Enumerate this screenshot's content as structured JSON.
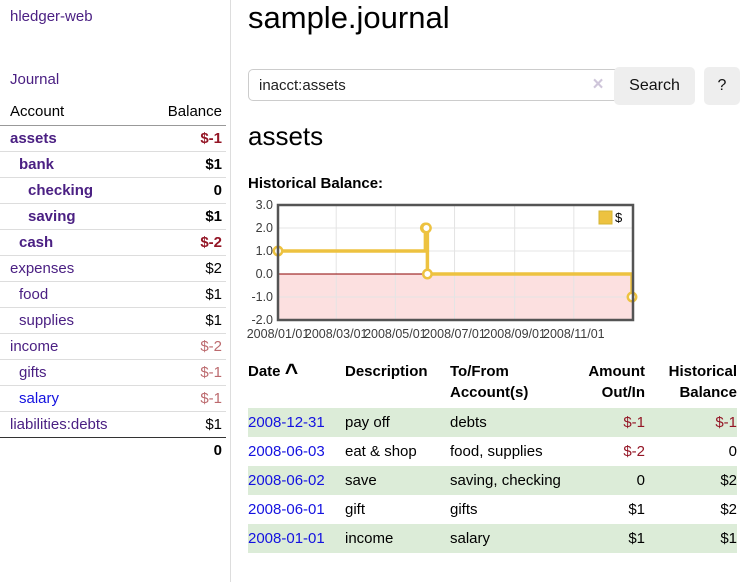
{
  "app_title": "hledger-web",
  "sidebar": {
    "journal_link": "Journal",
    "accounts": {
      "col_account": "Account",
      "col_balance": "Balance",
      "rows": [
        {
          "name": "assets",
          "balance": "$-1",
          "indent": 1,
          "bold": true,
          "tone": "strong"
        },
        {
          "name": "bank",
          "balance": "$1",
          "indent": 2,
          "bold": true,
          "tone": ""
        },
        {
          "name": "checking",
          "balance": "0",
          "indent": 3,
          "bold": true,
          "tone": ""
        },
        {
          "name": "saving",
          "balance": "$1",
          "indent": 3,
          "bold": true,
          "tone": ""
        },
        {
          "name": "cash",
          "balance": "$-2",
          "indent": 2,
          "bold": true,
          "tone": "strong"
        },
        {
          "name": "expenses",
          "balance": "$2",
          "indent": 1,
          "bold": false,
          "tone": ""
        },
        {
          "name": "food",
          "balance": "$1",
          "indent": 2,
          "bold": false,
          "tone": ""
        },
        {
          "name": "supplies",
          "balance": "$1",
          "indent": 2,
          "bold": false,
          "tone": ""
        },
        {
          "name": "income",
          "balance": "$-2",
          "indent": 1,
          "bold": false,
          "tone": "soft"
        },
        {
          "name": "gifts",
          "balance": "$-1",
          "indent": 2,
          "bold": false,
          "tone": "soft"
        },
        {
          "name": "salary",
          "balance": "$-1",
          "indent": 2,
          "bold": false,
          "tone": "soft",
          "link_color": "blue"
        },
        {
          "name": "liabilities:debts",
          "balance": "$1",
          "indent": 1,
          "bold": false,
          "tone": ""
        }
      ],
      "total": "0"
    }
  },
  "main": {
    "title": "sample.journal",
    "search": {
      "value": "inacct:assets",
      "clear_icon": "×",
      "search_button": "Search",
      "help_button": "?"
    },
    "account_heading": "assets",
    "chart_heading": "Historical Balance:"
  },
  "chart_data": {
    "type": "line",
    "step": true,
    "title": "Historical Balance",
    "series": [
      {
        "name": "$",
        "color": "#edc240",
        "points": [
          [
            "2008-01-01",
            1
          ],
          [
            "2008-06-01",
            2
          ],
          [
            "2008-06-02",
            2
          ],
          [
            "2008-06-03",
            0
          ],
          [
            "2008-12-31",
            -1
          ]
        ]
      }
    ],
    "xlim": [
      "2008-01-01",
      "2009-01-01"
    ],
    "ylim": [
      -2,
      3
    ],
    "y_ticks": [
      3.0,
      2.0,
      1.0,
      0.0,
      -1.0,
      -2.0
    ],
    "x_ticks": [
      {
        "date": "2008-01-01",
        "label": "2008/01/01"
      },
      {
        "date": "2008-03-01",
        "label": "2008/03/01"
      },
      {
        "date": "2008-05-01",
        "label": "2008/05/01"
      },
      {
        "date": "2008-07-01",
        "label": "2008/07/01"
      },
      {
        "date": "2008-09-01",
        "label": "2008/09/01"
      },
      {
        "date": "2008-11-01",
        "label": "2008/11/01"
      }
    ],
    "legend": {
      "label": "$",
      "position": "top-right"
    },
    "grid": true,
    "colors": {
      "line": "#edc240",
      "marker_fill": "#ffffff",
      "negative_region": "#fce0e0",
      "zero_line": "#8b0000",
      "border": "#545454",
      "gridline": "#e4e4e4",
      "tick_text": "#3c3c3c"
    }
  },
  "register": {
    "headers": [
      "Date",
      "Description",
      "To/From Account(s)",
      "Amount Out/In",
      "Historical Balance"
    ],
    "sort_icon": "^",
    "rows": [
      {
        "date": "2008-12-31",
        "description": "pay off",
        "accounts": "debts",
        "amount": "$-1",
        "balance": "$-1"
      },
      {
        "date": "2008-06-03",
        "description": "eat & shop",
        "accounts": "food, supplies",
        "amount": "$-2",
        "balance": "0"
      },
      {
        "date": "2008-06-02",
        "description": "save",
        "accounts": "saving, checking",
        "amount": "0",
        "balance": "$2"
      },
      {
        "date": "2008-06-01",
        "description": "gift",
        "accounts": "gifts",
        "amount": "$1",
        "balance": "$2"
      },
      {
        "date": "2008-01-01",
        "description": "income",
        "accounts": "salary",
        "amount": "$1",
        "balance": "$1"
      }
    ]
  },
  "colors": {
    "link_purple": "#4b2083",
    "link_blue": "#1412e0",
    "negative_strong": "#941626",
    "negative_soft": "#bc6a6e",
    "row_stripe_green": "#dcecd8",
    "button_bg": "#eeeeee"
  }
}
